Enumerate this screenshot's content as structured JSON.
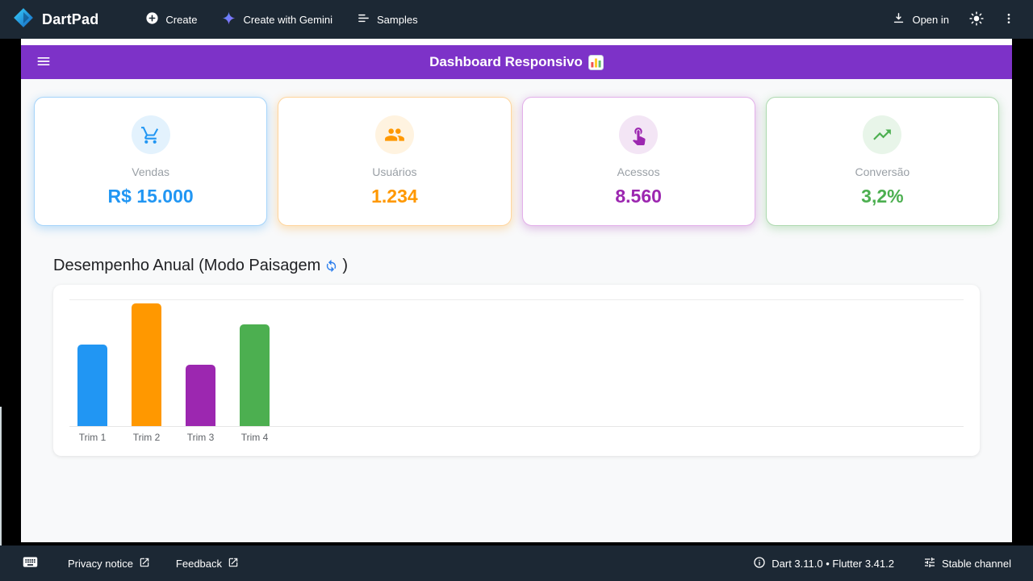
{
  "header": {
    "brand": "DartPad",
    "nav": [
      {
        "label": "Create"
      },
      {
        "label": "Create with Gemini"
      },
      {
        "label": "Samples"
      }
    ],
    "open_in_label": "Open in"
  },
  "app": {
    "appbar": {
      "title": "Dashboard Responsivo",
      "title_emoji": "📊"
    },
    "cards": [
      {
        "label": "Vendas",
        "value": "R$ 15.000",
        "color": "#2196F3",
        "border": "#a6d4fa",
        "tint": "#e3f2fd",
        "glow": "rgba(33,150,243,0.30)",
        "icon": "shopping-cart-icon"
      },
      {
        "label": "Usuários",
        "value": "1.234",
        "color": "#FF9800",
        "border": "#ffd59e",
        "tint": "#fff3e0",
        "glow": "rgba(255,152,0,0.30)",
        "icon": "people-icon"
      },
      {
        "label": "Acessos",
        "value": "8.560",
        "color": "#9C27B0",
        "border": "#e3b0ea",
        "tint": "#f3e5f5",
        "glow": "rgba(156,39,176,0.30)",
        "icon": "touch-icon"
      },
      {
        "label": "Conversão",
        "value": "3,2%",
        "color": "#4CAF50",
        "border": "#aed9b0",
        "tint": "#e8f5e9",
        "glow": "rgba(76,175,80,0.30)",
        "icon": "trending-up-icon"
      }
    ],
    "section": {
      "title": "Desempenho Anual (Modo Paisagem",
      "emoji": "🔄",
      "suffix": ")"
    },
    "chart_data": {
      "type": "bar",
      "title": "Desempenho Anual (Modo Paisagem)",
      "categories": [
        "Trim 1",
        "Trim 2",
        "Trim 3",
        "Trim 4"
      ],
      "values": [
        100,
        150,
        75,
        125
      ],
      "colors": [
        "#2196F3",
        "#FF9800",
        "#9C27B0",
        "#4CAF50"
      ],
      "ylim": [
        0,
        150
      ],
      "grid": "top gridline and baseline only",
      "legend": "none"
    }
  },
  "footer": {
    "privacy_label": "Privacy notice",
    "feedback_label": "Feedback",
    "versions": "Dart 3.11.0 • Flutter 3.41.2",
    "channel": "Stable channel"
  },
  "colors": {
    "chrome_bg": "#1c2834",
    "appbar": "#7d32c8",
    "workspace_bg": "#000000",
    "app_body_bg": "#f8f9fa"
  }
}
